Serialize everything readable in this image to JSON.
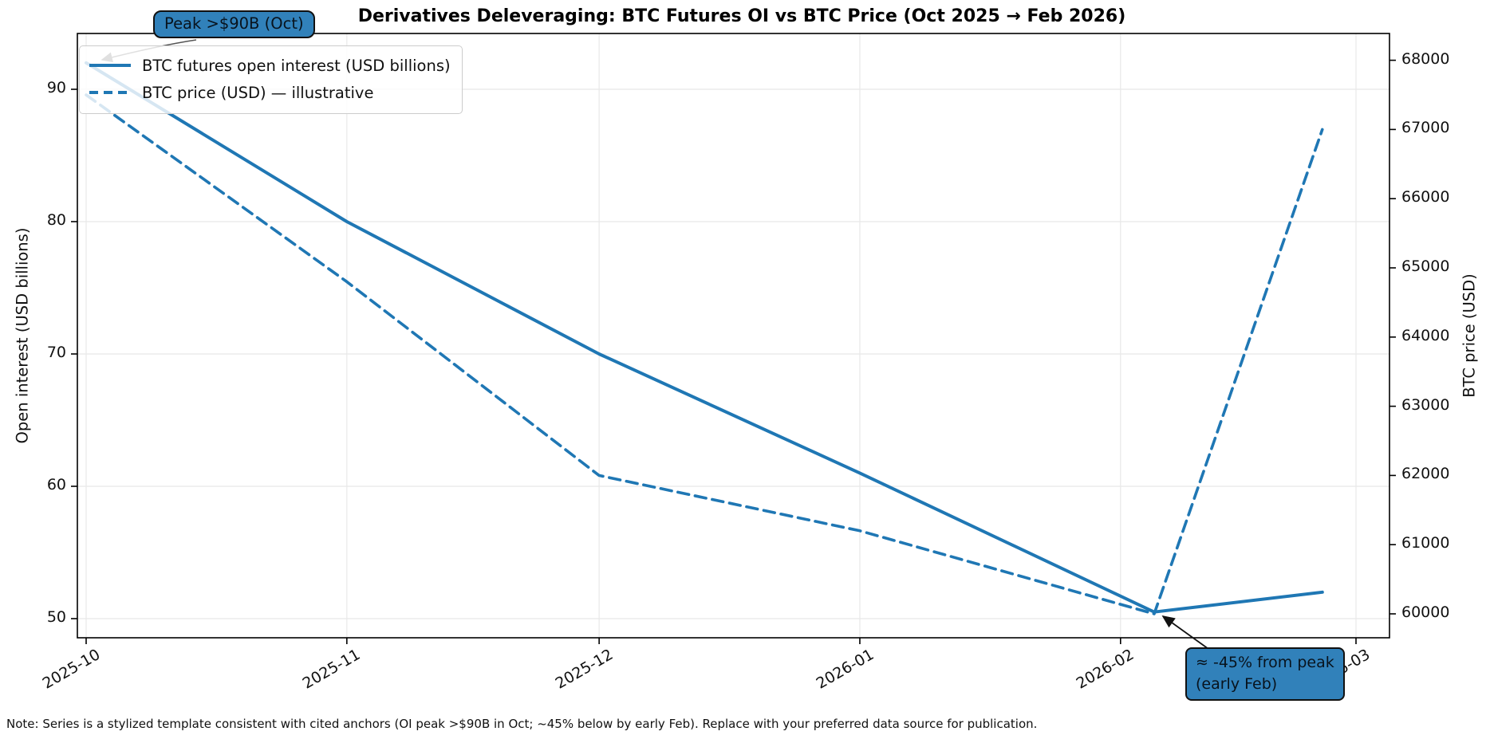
{
  "title": "Derivatives Deleveraging: BTC Futures OI vs BTC Price (Oct 2025 → Feb 2026)",
  "note": "Note: Series is a stylized template consistent with cited anchors (OI peak >$90B in Oct; ~45% below by early Feb). Replace with your preferred data source for publication.",
  "colors": {
    "line": "#1f77b4",
    "annotation_fill": "#3181ba",
    "grid": "#e8e8e8",
    "spine": "#000000"
  },
  "legend": {
    "position": "upper left",
    "items": [
      {
        "label": "BTC futures open interest (USD billions)",
        "style": "solid"
      },
      {
        "label": "BTC price (USD) — illustrative",
        "style": "dashed"
      }
    ]
  },
  "annotations": {
    "peak": {
      "text": "Peak >$90B (Oct)",
      "target": "2025-10-01 OI 92"
    },
    "trough": {
      "line1": "≈ -45% from peak",
      "line2": "(early Feb)",
      "target": "2026-02-05 OI 50.5"
    }
  },
  "chart_data": {
    "type": "line",
    "title": "Derivatives Deleveraging: BTC Futures OI vs BTC Price (Oct 2025 → Feb 2026)",
    "x": [
      "2025-10-01",
      "2025-11-01",
      "2025-12-01",
      "2026-01-01",
      "2026-02-05",
      "2026-02-25"
    ],
    "series": [
      {
        "name": "BTC futures open interest (USD billions)",
        "axis": "left",
        "style": "solid",
        "values": [
          92,
          80,
          70,
          61,
          50.5,
          52
        ]
      },
      {
        "name": "BTC price (USD) — illustrative",
        "axis": "right",
        "style": "dashed",
        "values": [
          67500,
          64800,
          62000,
          61200,
          60000,
          67000
        ]
      }
    ],
    "left_axis": {
      "label": "Open interest (USD billions)",
      "ticks": [
        50,
        60,
        70,
        80,
        90
      ],
      "range": [
        48.6,
        94.2
      ]
    },
    "right_axis": {
      "label": "BTC price (USD)",
      "ticks": [
        60000,
        61000,
        62000,
        63000,
        64000,
        65000,
        66000,
        67000,
        68000
      ],
      "range": [
        59650,
        68390
      ]
    },
    "x_axis": {
      "ticks": [
        "2025-10",
        "2025-11",
        "2025-12",
        "2026-01",
        "2026-02",
        "2026-03"
      ],
      "tick_rotation_deg": 30
    },
    "grid": true,
    "legend_position": "upper left"
  }
}
